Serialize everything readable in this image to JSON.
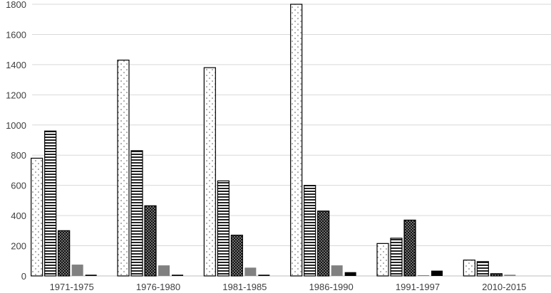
{
  "chart_data": {
    "type": "bar",
    "title": "",
    "xlabel": "",
    "ylabel": "",
    "ylim": [
      0,
      1800
    ],
    "yticks": [
      0,
      200,
      400,
      600,
      800,
      1000,
      1200,
      1400,
      1600,
      1800
    ],
    "grid": true,
    "legend": "none",
    "categories": [
      "1971-1975",
      "1976-1980",
      "1981-1985",
      "1986-1990",
      "1991-1997",
      "2010-2015"
    ],
    "series": [
      {
        "pattern": "dots",
        "values": [
          780,
          1430,
          1380,
          1800,
          215,
          105
        ]
      },
      {
        "pattern": "hlines",
        "values": [
          960,
          830,
          630,
          600,
          250,
          95
        ]
      },
      {
        "pattern": "dense-dots",
        "values": [
          300,
          465,
          270,
          430,
          370,
          15
        ]
      },
      {
        "pattern": "solid-gray",
        "values": [
          75,
          70,
          55,
          70,
          5,
          8
        ]
      },
      {
        "pattern": "solid-black",
        "values": [
          8,
          8,
          8,
          25,
          35,
          0
        ]
      }
    ]
  }
}
